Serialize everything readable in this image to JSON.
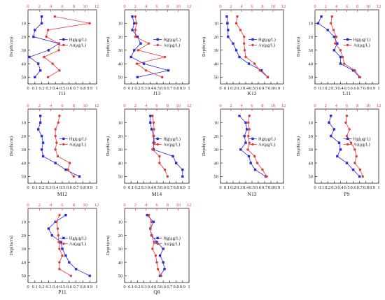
{
  "colors": {
    "hg": "#2a2ad8",
    "as": "#e23a3a",
    "axis": "#222222"
  },
  "legend": {
    "hg_label": "Hg(μg/L)",
    "as_label": "As(μg/L)"
  },
  "ylabel": "Depth(cm)",
  "chart_data": [
    {
      "type": "line",
      "title": "J11",
      "depth": [
        5,
        10,
        15,
        20,
        25,
        30,
        35,
        40,
        45,
        50
      ],
      "series": [
        {
          "name": "Hg(μg/L)",
          "axis": "bottom",
          "xlim": [
            0,
            1.0
          ],
          "values": [
            0.2,
            0.2,
            0.1,
            0.08,
            0.45,
            0.3,
            0.02,
            0.15,
            0.18,
            0.1
          ]
        },
        {
          "name": "As(μg/L)",
          "axis": "top",
          "xlim": [
            0,
            12
          ],
          "values": [
            4.7,
            10.8,
            3.5,
            3.2,
            5.4,
            5.4,
            2.8,
            4.3,
            5.5,
            3.5
          ]
        }
      ]
    },
    {
      "type": "line",
      "title": "J13",
      "depth": [
        5,
        10,
        15,
        20,
        25,
        30,
        35,
        40,
        45,
        50
      ],
      "series": [
        {
          "name": "Hg(μg/L)",
          "axis": "bottom",
          "xlim": [
            0,
            1.0
          ],
          "values": [
            0.12,
            0.15,
            0.12,
            0.2,
            0.25,
            0.15,
            0.1,
            0.3,
            0.68,
            0.2
          ]
        },
        {
          "name": "As(μg/L)",
          "axis": "top",
          "xlim": [
            0,
            12
          ],
          "values": [
            2.0,
            2.2,
            2.0,
            2.0,
            4.5,
            2.5,
            7.5,
            2.3,
            4.0,
            7.0
          ]
        }
      ]
    },
    {
      "type": "line",
      "title": "K12",
      "depth": [
        5,
        10,
        15,
        20,
        25,
        30,
        35,
        40,
        45,
        50
      ],
      "series": [
        {
          "name": "Hg(μg/L)",
          "axis": "bottom",
          "xlim": [
            0,
            1.0
          ],
          "values": [
            0.1,
            0.11,
            0.12,
            0.12,
            0.2,
            0.25,
            0.3,
            0.45,
            0.65,
            0.75
          ]
        },
        {
          "name": "As(μg/L)",
          "axis": "top",
          "xlim": [
            0,
            12
          ],
          "values": [
            3.2,
            3.0,
            3.8,
            4.5,
            4.5,
            4.6,
            4.8,
            6.5,
            7.5,
            9.0
          ]
        }
      ]
    },
    {
      "type": "line",
      "title": "L11",
      "depth": [
        5,
        10,
        15,
        20,
        25,
        30,
        35,
        40,
        45,
        50
      ],
      "series": [
        {
          "name": "Hg(μg/L)",
          "axis": "bottom",
          "xlim": [
            0,
            1.0
          ],
          "values": [
            0.1,
            0.05,
            0.2,
            0.3,
            0.35,
            0.3,
            0.4,
            0.4,
            0.6,
            0.7
          ]
        },
        {
          "name": "As(μg/L)",
          "axis": "top",
          "xlim": [
            0,
            12
          ],
          "values": [
            3.2,
            3.0,
            3.5,
            4.0,
            3.8,
            4.8,
            5.2,
            5.5,
            7.5,
            8.5
          ]
        }
      ]
    },
    {
      "type": "line",
      "title": "M12",
      "depth": [
        5,
        10,
        15,
        20,
        25,
        30,
        35,
        40,
        45,
        50
      ],
      "series": [
        {
          "name": "Hg(μg/L)",
          "axis": "bottom",
          "xlim": [
            0,
            1.0
          ],
          "values": [
            0.18,
            0.18,
            0.15,
            0.2,
            0.22,
            0.2,
            0.22,
            0.4,
            0.55,
            0.75
          ]
        },
        {
          "name": "As(μg/L)",
          "axis": "top",
          "xlim": [
            0,
            12
          ],
          "values": [
            5.5,
            5.3,
            4.8,
            4.8,
            5.0,
            4.8,
            5.2,
            7.3,
            7.0,
            8.0
          ]
        }
      ]
    },
    {
      "type": "line",
      "title": "M14",
      "depth": [
        5,
        10,
        15,
        20,
        25,
        30,
        35,
        40,
        45,
        50
      ],
      "series": [
        {
          "name": "Hg(μg/L)",
          "axis": "bottom",
          "xlim": [
            0,
            1.0
          ],
          "values": [
            0.4,
            0.4,
            0.42,
            0.45,
            0.45,
            0.45,
            0.75,
            0.8,
            0.9,
            0.9
          ]
        },
        {
          "name": "As(μg/L)",
          "axis": "top",
          "xlim": [
            0,
            12
          ],
          "values": [
            5.2,
            5.4,
            5.5,
            5.4,
            5.6,
            5.2,
            6.5,
            6.5,
            7.5,
            8.0
          ]
        }
      ]
    },
    {
      "type": "line",
      "title": "N13",
      "depth": [
        5,
        10,
        15,
        20,
        25,
        30,
        35,
        40,
        45,
        50
      ],
      "series": [
        {
          "name": "Hg(μg/L)",
          "axis": "bottom",
          "xlim": [
            0,
            1.0
          ],
          "values": [
            0.3,
            0.4,
            0.42,
            0.38,
            0.4,
            0.32,
            0.45,
            0.48,
            0.55,
            0.72
          ]
        },
        {
          "name": "As(μg/L)",
          "axis": "top",
          "xlim": [
            0,
            12
          ],
          "values": [
            5.5,
            5.3,
            5.5,
            5.3,
            5.5,
            5.2,
            6.5,
            7.0,
            8.0,
            8.8
          ]
        }
      ]
    },
    {
      "type": "line",
      "title": "P9",
      "depth": [
        5,
        10,
        15,
        20,
        25,
        30,
        35,
        40,
        45,
        50
      ],
      "series": [
        {
          "name": "Hg(μg/L)",
          "axis": "bottom",
          "xlim": [
            0,
            1.0
          ],
          "values": [
            0.25,
            0.22,
            0.3,
            0.25,
            0.38,
            0.4,
            0.35,
            0.5,
            0.6,
            0.7
          ]
        },
        {
          "name": "As(μg/L)",
          "axis": "top",
          "xlim": [
            0,
            12
          ],
          "values": [
            6.0,
            5.8,
            6.5,
            6.0,
            6.8,
            7.5,
            7.8,
            7.5,
            8.5,
            9.0
          ]
        }
      ]
    },
    {
      "type": "line",
      "title": "P11",
      "depth": [
        5,
        10,
        15,
        20,
        25,
        30,
        35,
        40,
        45,
        50
      ],
      "series": [
        {
          "name": "Hg(μg/L)",
          "axis": "bottom",
          "xlim": [
            0,
            1.0
          ],
          "values": [
            0.55,
            0.4,
            0.3,
            0.35,
            0.48,
            0.5,
            0.55,
            0.6,
            0.7,
            0.9
          ]
        },
        {
          "name": "As(μg/L)",
          "axis": "top",
          "xlim": [
            0,
            12
          ],
          "values": [
            5.5,
            5.0,
            5.2,
            5.3,
            5.4,
            5.5,
            6.0,
            5.5,
            5.5,
            7.5
          ]
        }
      ]
    },
    {
      "type": "line",
      "title": "Q8",
      "depth": [
        5,
        10,
        15,
        20,
        25,
        30,
        35,
        40,
        45,
        50
      ],
      "series": [
        {
          "name": "Hg(μg/L)",
          "axis": "bottom",
          "xlim": [
            0,
            1.0
          ],
          "values": [
            0.35,
            0.45,
            0.4,
            0.42,
            0.5,
            0.6,
            0.55,
            0.6,
            0.62,
            0.55
          ]
        },
        {
          "name": "As(μg/L)",
          "axis": "top",
          "xlim": [
            0,
            12
          ],
          "values": [
            4.5,
            5.0,
            4.8,
            5.0,
            5.5,
            5.2,
            5.8,
            6.0,
            6.2,
            6.8
          ]
        }
      ]
    }
  ]
}
